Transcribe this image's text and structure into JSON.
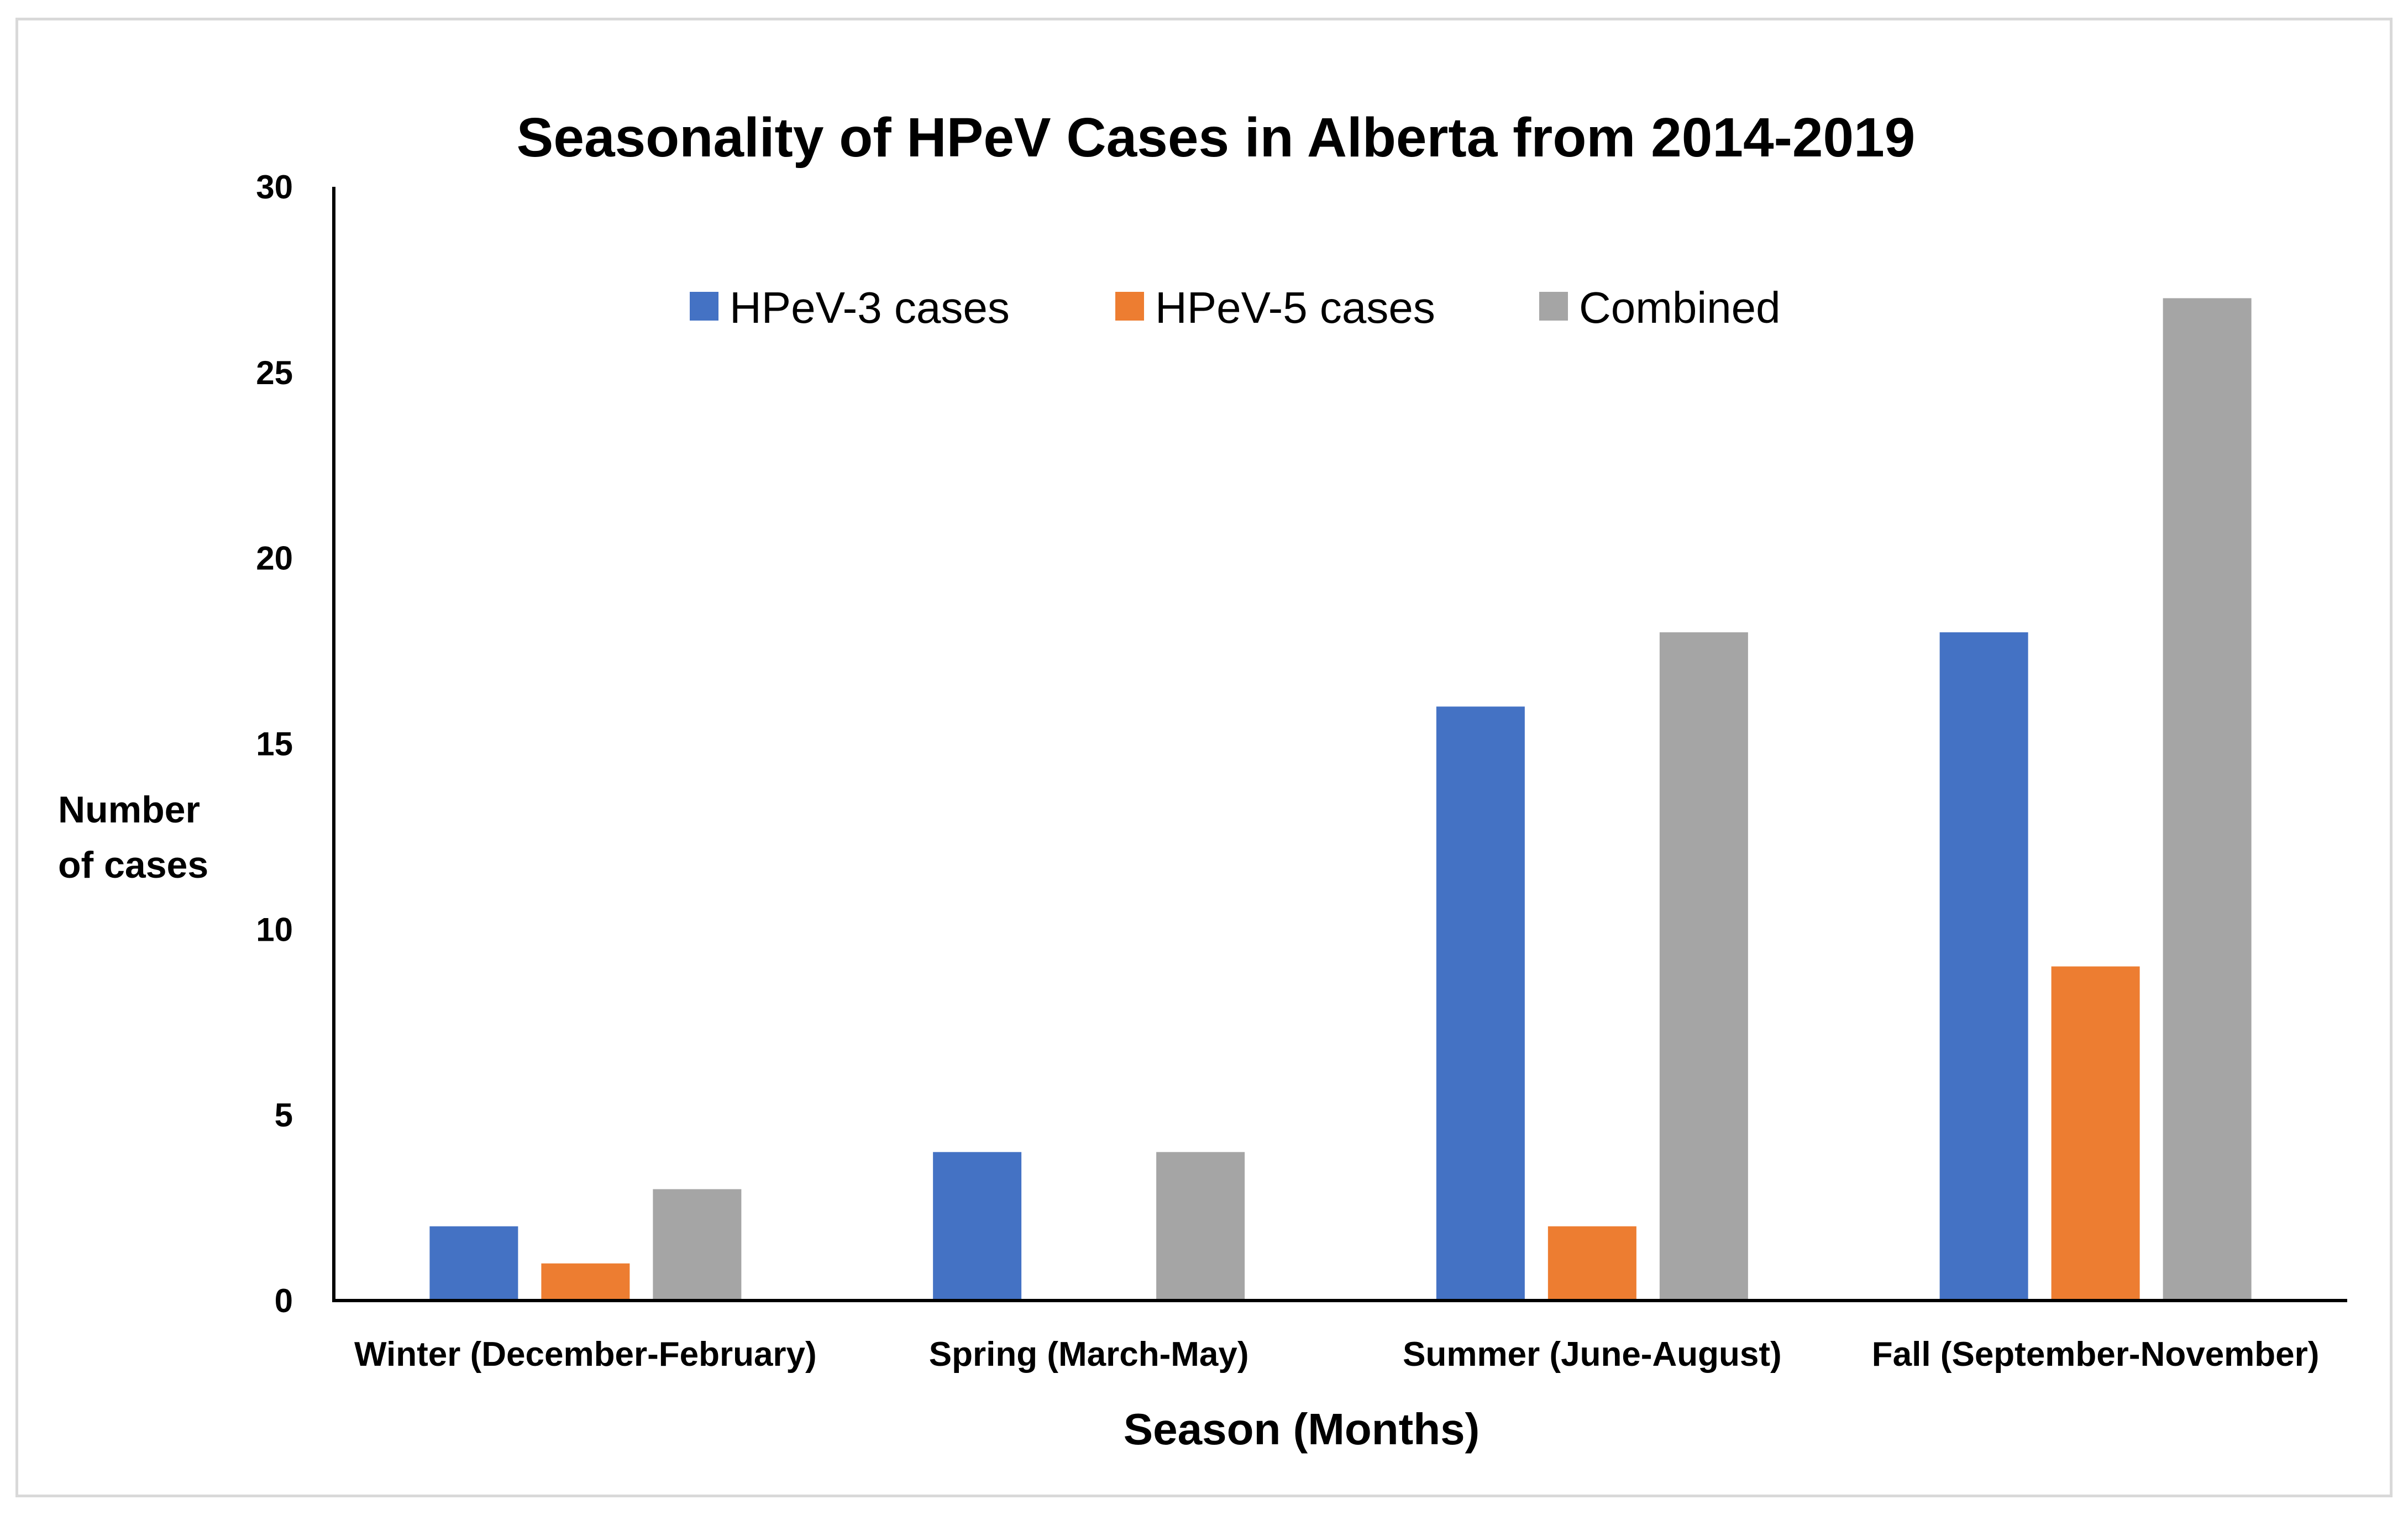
{
  "chart_data": {
    "type": "bar",
    "title": "Seasonality of HPeV Cases in Alberta from 2014-2019",
    "xlabel": "Season (Months)",
    "ylabel_lines": [
      "Number",
      "of cases"
    ],
    "categories": [
      "Winter (December-February)",
      "Spring (March-May)",
      "Summer (June-August)",
      "Fall (September-November)"
    ],
    "series": [
      {
        "name": "HPeV-3 cases",
        "color": "#4472c4",
        "values": [
          2,
          4,
          16,
          18
        ]
      },
      {
        "name": "HPeV-5 cases",
        "color": "#ed7d31",
        "values": [
          1,
          0,
          2,
          9
        ]
      },
      {
        "name": "Combined",
        "color": "#a5a5a5",
        "values": [
          3,
          4,
          18,
          27
        ]
      }
    ],
    "ylim": [
      0,
      30
    ],
    "yticks": [
      "0",
      "5",
      "10",
      "15",
      "20",
      "25",
      "30"
    ],
    "grid": false,
    "legend_position": "top-center"
  }
}
